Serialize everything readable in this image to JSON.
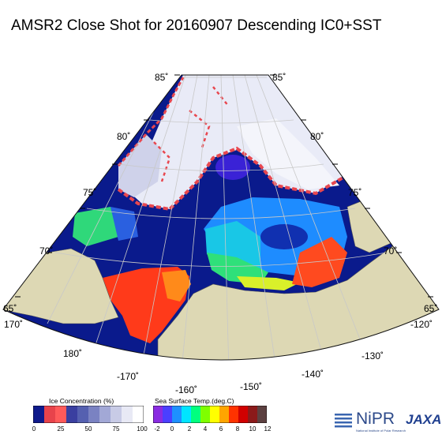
{
  "title": "AMSR2 Close Shot for 20160907 Descending IC0+SST",
  "lat_labels": {
    "left": [
      "85˚",
      "80˚",
      "75˚",
      "70˚",
      "65˚"
    ],
    "right": [
      "85˚",
      "80˚",
      "75˚",
      "70˚",
      "65˚"
    ]
  },
  "lon_labels": [
    "170˚",
    "180˚",
    "-170˚",
    "-160˚",
    "-150˚",
    "-140˚",
    "-130˚",
    "-120˚"
  ],
  "ice_colorbar": {
    "title": "Ice Concentration (%)",
    "ticks": [
      "0",
      "25",
      "50",
      "75",
      "100"
    ],
    "colors": [
      "#0f1a8c",
      "#e8434b",
      "#ff5a5a",
      "#3a3fa0",
      "#5560b0",
      "#7a82c2",
      "#a2a8d6",
      "#c8cbe6",
      "#e8e9f5",
      "#ffffff"
    ]
  },
  "sst_colorbar": {
    "title": "Sea Surface Temp.(deg.C)",
    "ticks": [
      "-2",
      "0",
      "2",
      "4",
      "6",
      "8",
      "10",
      "12"
    ],
    "colors": [
      "#8a2be2",
      "#4b3fff",
      "#1e90ff",
      "#00e5ff",
      "#00ff7f",
      "#7fff00",
      "#ffff00",
      "#ffa500",
      "#ff3300",
      "#d10000",
      "#8b1a1a",
      "#5c4040"
    ]
  },
  "logos": {
    "nipr": "NiPR",
    "jaxa": "JAXA",
    "nipr_sub": "National Institute of Polar Research"
  },
  "colors": {
    "ocean": "#0a1a8c",
    "land": "#ddd8b4",
    "ice": "#eceef8",
    "ice_edge": "#e8474f"
  }
}
